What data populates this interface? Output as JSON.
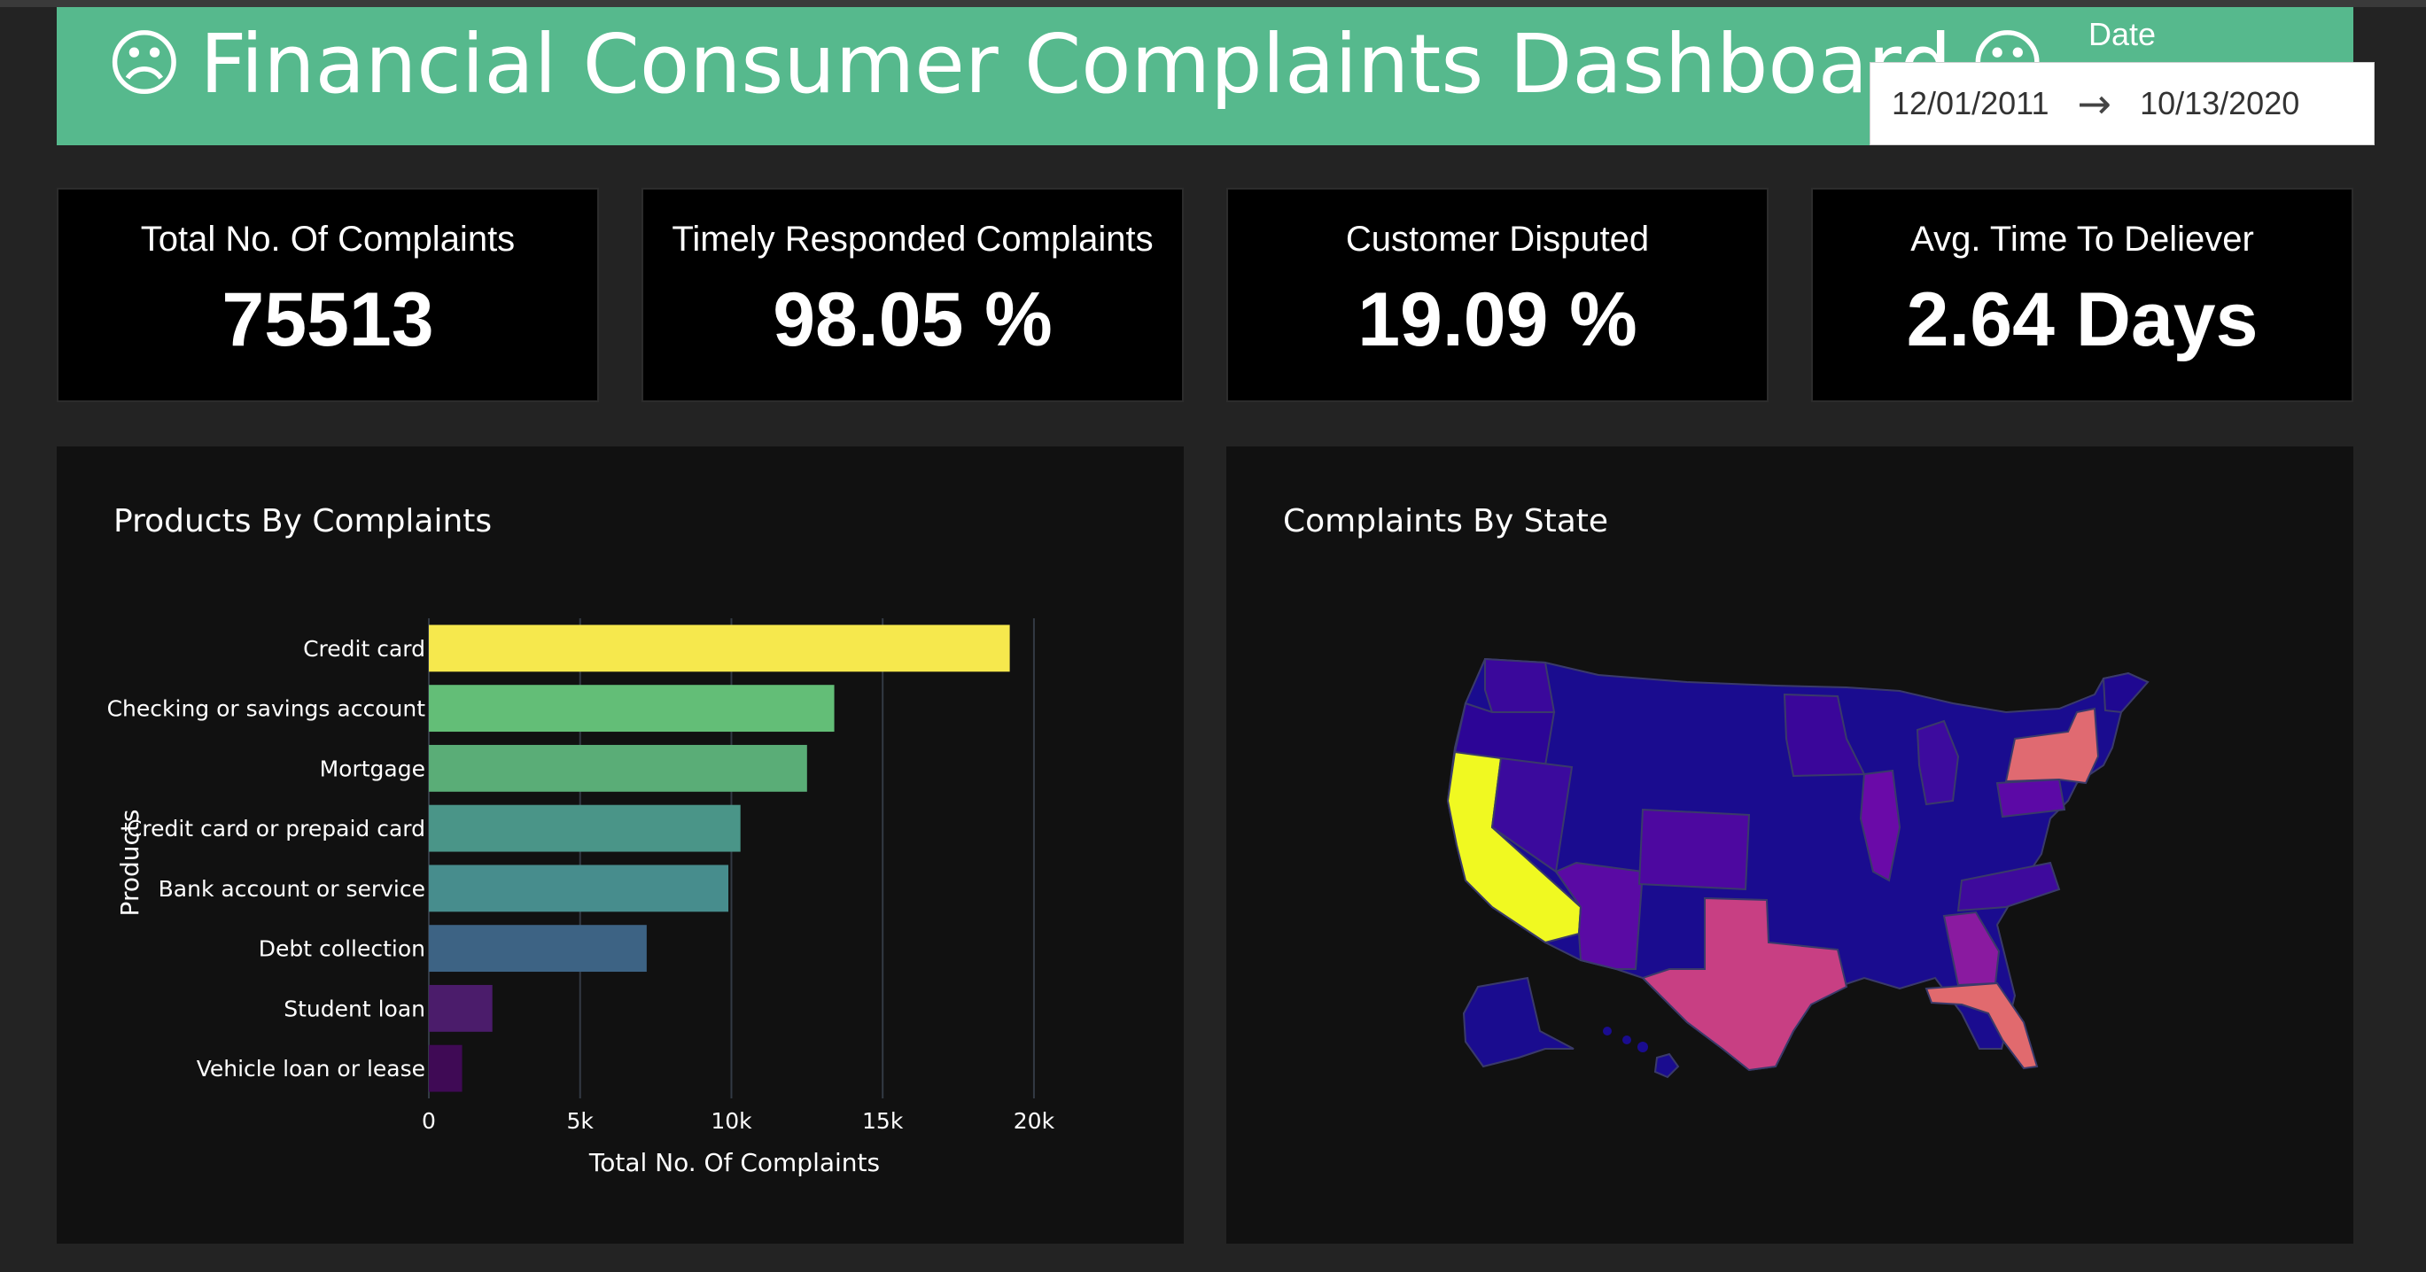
{
  "header": {
    "title": "Financial Consumer Complaints Dashboard",
    "face_icon": "☹",
    "date_label": "Date",
    "start_date": "12/01/2011",
    "end_date": "10/13/2020",
    "arrow_icon": "→"
  },
  "kpis": [
    {
      "label": "Total No. Of Complaints",
      "value": "75513"
    },
    {
      "label": "Timely Responded Complaints",
      "value": "98.05 %"
    },
    {
      "label": "Customer Disputed",
      "value": "19.09 %"
    },
    {
      "label": "Avg. Time To Deliever",
      "value": "2.64 Days"
    }
  ],
  "colors": {
    "header": "#56b98d",
    "background": "#232323",
    "panel": "#111111"
  },
  "bar_panel": {
    "title": "Products By Complaints",
    "chart_data": {
      "type": "bar",
      "orientation": "horizontal",
      "categories": [
        "Credit card",
        "Checking or savings account",
        "Mortgage",
        "Credit card or prepaid card",
        "Bank account or service",
        "Debt collection",
        "Student loan",
        "Vehicle loan or lease"
      ],
      "values": [
        19200,
        13400,
        12500,
        10300,
        9900,
        7200,
        2100,
        1100
      ],
      "colors": [
        "#f6e84d",
        "#63be77",
        "#5aad77",
        "#4a9588",
        "#478d8d",
        "#3d6384",
        "#4b1c6b",
        "#3f0a55"
      ],
      "xlabel": "Total No. Of Complaints",
      "ylabel": "Products",
      "xlim": [
        0,
        20500
      ],
      "xticks": [
        0,
        5000,
        10000,
        15000,
        20000
      ],
      "xtick_labels": [
        "0",
        "5k",
        "10k",
        "15k",
        "20k"
      ],
      "grid": true
    }
  },
  "map_panel": {
    "title": "Complaints By State"
  }
}
